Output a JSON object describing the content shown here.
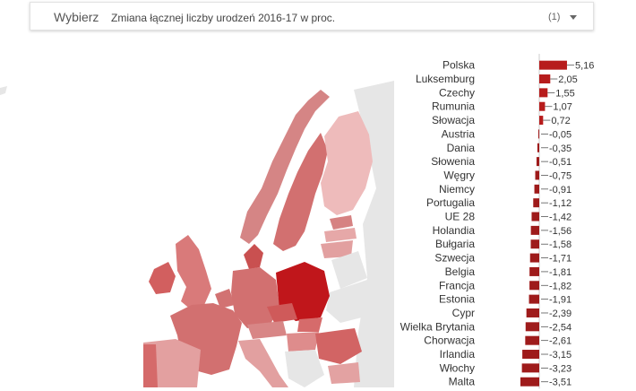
{
  "selector": {
    "label": "Wybierz",
    "value": "Zmiana łącznej liczby urodzeń 2016-17 w proc.",
    "count": "(1)",
    "caret_icon": "dropdown-caret-icon"
  },
  "colors": {
    "bar_positive": "#b71c1c",
    "bar_negative": "#9e1b1b",
    "map_strong": "#c0161b",
    "map_medium": "#d87a7a",
    "map_light": "#eebbbb",
    "map_nodata": "#e6e6e6",
    "sea": "#ffffff",
    "axis": "#cccccc"
  },
  "chart_data": {
    "type": "bar",
    "orientation": "horizontal",
    "categories": [
      "Polska",
      "Luksemburg",
      "Czechy",
      "Rumunia",
      "Słowacja",
      "Austria",
      "Dania",
      "Słowenia",
      "Węgry",
      "Niemcy",
      "Portugalia",
      "UE 28",
      "Holandia",
      "Bułgaria",
      "Szwecja",
      "Belgia",
      "Francja",
      "Estonia",
      "Cypr",
      "Wielka Brytania",
      "Chorwacja",
      "Irlandia",
      "Włochy",
      "Malta"
    ],
    "values": [
      5.16,
      2.05,
      1.55,
      1.07,
      0.72,
      -0.05,
      -0.35,
      -0.51,
      -0.75,
      -0.91,
      -1.12,
      -1.42,
      -1.56,
      -1.58,
      -1.71,
      -1.81,
      -1.82,
      -1.91,
      -2.39,
      -2.54,
      -2.61,
      -3.15,
      -3.23,
      -3.51
    ],
    "value_labels": [
      "5,16",
      "2,05",
      "1,55",
      "1,07",
      "0,72",
      "-0,05",
      "-0,35",
      "-0,51",
      "-0,75",
      "-0,91",
      "-1,12",
      "-1,42",
      "-1,56",
      "-1,58",
      "-1,71",
      "-1,81",
      "-1,82",
      "-1,91",
      "-2,39",
      "-2,54",
      "-2,61",
      "-3,15",
      "-3,23",
      "-3,51"
    ],
    "xlim": [
      -4,
      6
    ]
  }
}
